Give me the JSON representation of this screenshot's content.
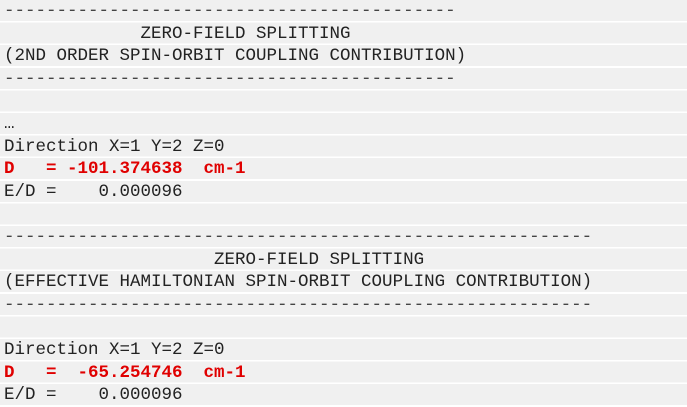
{
  "lines": [
    {
      "text": "-------------------------------------------",
      "style": "sep"
    },
    {
      "text": "             ZERO-FIELD SPLITTING",
      "style": "normal"
    },
    {
      "text": "(2ND ORDER SPIN-ORBIT COUPLING CONTRIBUTION)",
      "style": "normal"
    },
    {
      "text": "-------------------------------------------",
      "style": "sep"
    },
    {
      "text": "",
      "style": "normal"
    },
    {
      "text": "…",
      "style": "normal"
    },
    {
      "text": "Direction X=1 Y=2 Z=0",
      "style": "normal"
    },
    {
      "text": "D   = -101.374638  cm-1",
      "style": "red"
    },
    {
      "text": "E/D =    0.000096",
      "style": "normal"
    },
    {
      "text": "",
      "style": "normal"
    },
    {
      "text": "--------------------------------------------------------",
      "style": "sep"
    },
    {
      "text": "                    ZERO-FIELD SPLITTING",
      "style": "normal"
    },
    {
      "text": "(EFFECTIVE HAMILTONIAN SPIN-ORBIT COUPLING CONTRIBUTION)",
      "style": "normal"
    },
    {
      "text": "--------------------------------------------------------",
      "style": "sep"
    },
    {
      "text": "",
      "style": "normal"
    },
    {
      "text": "Direction X=1 Y=2 Z=0",
      "style": "normal"
    },
    {
      "text": "D   =  -65.254746  cm-1",
      "style": "red"
    },
    {
      "text": "E/D =    0.000096",
      "style": "normal"
    }
  ]
}
